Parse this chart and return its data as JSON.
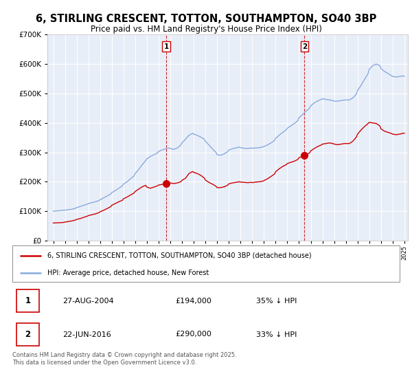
{
  "title": "6, STIRLING CRESCENT, TOTTON, SOUTHAMPTON, SO40 3BP",
  "subtitle": "Price paid vs. HM Land Registry's House Price Index (HPI)",
  "sale1_date": "27-AUG-2004",
  "sale1_price": 194000,
  "sale1_hpi_pct": "35% ↓ HPI",
  "sale2_date": "22-JUN-2016",
  "sale2_price": 290000,
  "sale2_hpi_pct": "33% ↓ HPI",
  "legend_red": "6, STIRLING CRESCENT, TOTTON, SOUTHAMPTON, SO40 3BP (detached house)",
  "legend_blue": "HPI: Average price, detached house, New Forest",
  "footer": "Contains HM Land Registry data © Crown copyright and database right 2025.\nThis data is licensed under the Open Government Licence v3.0.",
  "red_color": "#cc0000",
  "blue_color": "#88aadd",
  "vline_color": "#cc0000",
  "bg_color": "#e8eef8",
  "ylim": [
    0,
    700000
  ],
  "yticks": [
    0,
    100000,
    200000,
    300000,
    400000,
    500000,
    600000,
    700000
  ],
  "sale1_x": 2004.65,
  "sale2_x": 2016.47
}
